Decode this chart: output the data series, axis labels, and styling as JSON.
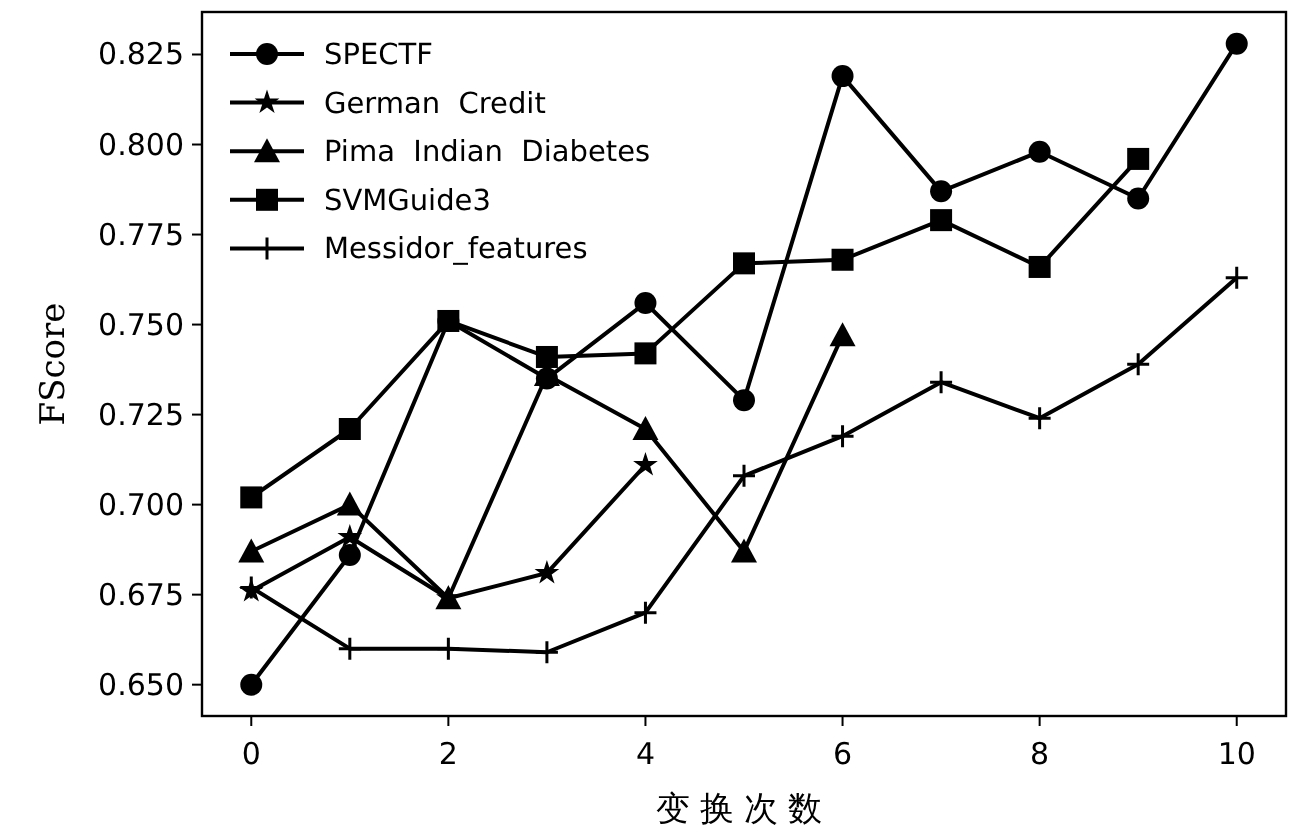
{
  "chart_data": {
    "type": "line",
    "xlabel": "变换次数",
    "ylabel": "FScore",
    "x": [
      0,
      1,
      2,
      3,
      4,
      5,
      6,
      7,
      8,
      9,
      10
    ],
    "xlim": [
      -0.5,
      10.5
    ],
    "ylim": [
      0.6413,
      0.8368
    ],
    "xticks": [
      0,
      2,
      4,
      6,
      8,
      10
    ],
    "yticks": [
      {
        "value": 0.65,
        "label": "0.650"
      },
      {
        "value": 0.675,
        "label": "0.675"
      },
      {
        "value": 0.7,
        "label": "0.700"
      },
      {
        "value": 0.725,
        "label": "0.725"
      },
      {
        "value": 0.75,
        "label": "0.750"
      },
      {
        "value": 0.775,
        "label": "0.775"
      },
      {
        "value": 0.8,
        "label": "0.800"
      },
      {
        "value": 0.825,
        "label": "0.825"
      }
    ],
    "grid": false,
    "legend": "top left",
    "line_style": "solid",
    "series": [
      {
        "name": "SPECTF",
        "color": "#000000",
        "marker": "circle",
        "values": [
          0.65,
          0.686,
          0.751,
          0.735,
          0.756,
          0.729,
          0.819,
          0.787,
          0.798,
          0.785,
          0.828
        ]
      },
      {
        "name": "German  Credit",
        "color": "#000000",
        "marker": "star",
        "values": [
          0.676,
          0.691,
          0.674,
          0.681,
          0.711,
          null,
          null,
          null,
          null,
          null,
          null
        ]
      },
      {
        "name": "Pima  Indian  Diabetes",
        "color": "#000000",
        "marker": "triangle",
        "values": [
          0.687,
          0.7,
          0.674,
          0.736,
          0.721,
          0.687,
          0.747,
          null,
          null,
          null,
          null
        ]
      },
      {
        "name": "SVMGuide3",
        "color": "#000000",
        "marker": "square",
        "values": [
          0.702,
          0.721,
          0.751,
          0.741,
          0.742,
          0.767,
          0.768,
          0.779,
          0.766,
          0.796,
          null
        ]
      },
      {
        "name": "Messidor_features",
        "color": "#000000",
        "marker": "cross",
        "values": [
          0.677,
          0.66,
          0.66,
          0.659,
          0.67,
          0.708,
          0.719,
          0.734,
          0.724,
          0.739,
          0.763
        ]
      }
    ]
  }
}
